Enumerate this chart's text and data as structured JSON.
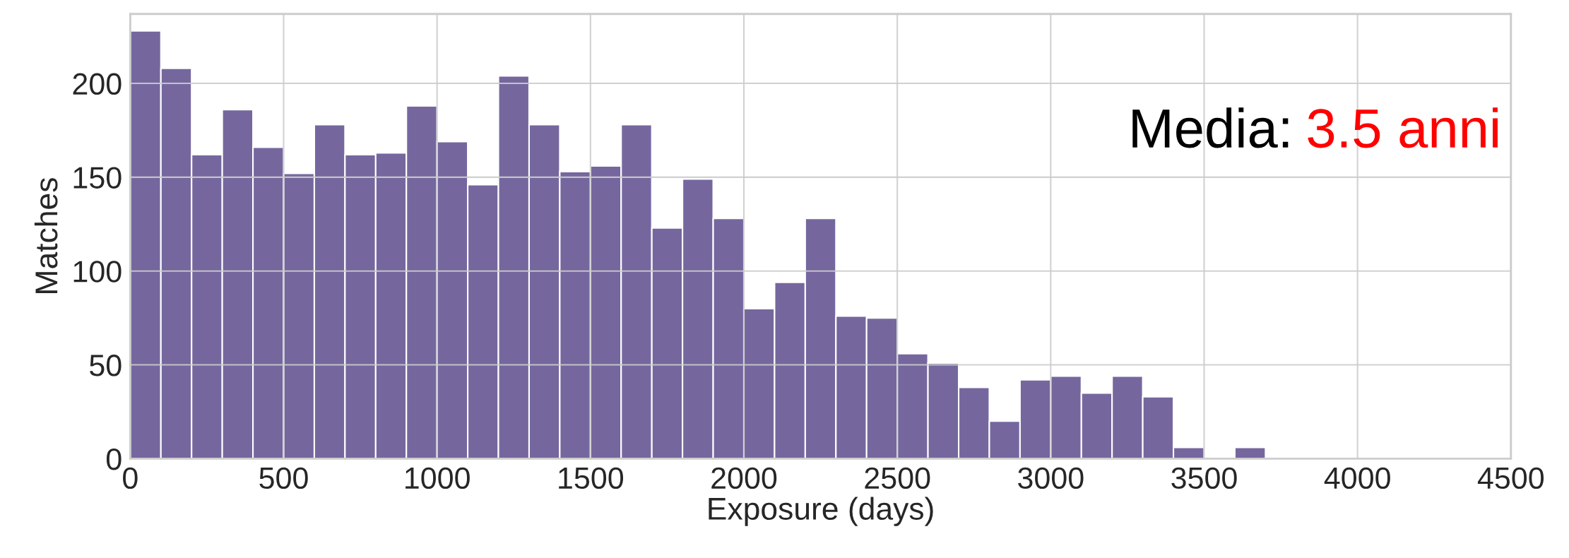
{
  "chart_data": {
    "type": "histogram",
    "xlabel": "Exposure (days)",
    "ylabel": "Matches",
    "bins": [
      0,
      100,
      200,
      300,
      400,
      500,
      600,
      700,
      800,
      900,
      1000,
      1100,
      1200,
      1300,
      1400,
      1500,
      1600,
      1700,
      1800,
      1900,
      2000,
      2100,
      2200,
      2300,
      2400,
      2500,
      2600,
      2700,
      2800,
      2900,
      3000,
      3100,
      3200,
      3300,
      3400,
      3500,
      3600,
      3700
    ],
    "values": [
      228,
      208,
      162,
      186,
      166,
      152,
      178,
      162,
      163,
      188,
      169,
      146,
      204,
      178,
      153,
      156,
      178,
      123,
      149,
      128,
      80,
      94,
      128,
      76,
      75,
      56,
      51,
      38,
      20,
      42,
      44,
      35,
      44,
      33,
      6,
      0,
      6
    ],
    "color": "#75679e",
    "xlim": [
      0,
      4500
    ],
    "xticks": [
      0,
      500,
      1000,
      1500,
      2000,
      2500,
      3000,
      3500,
      4000,
      4500
    ],
    "ylim": [
      0,
      237
    ],
    "yticks": [
      0,
      50,
      100,
      150,
      200
    ],
    "grid": true,
    "annotations": [
      "Media:",
      "3.5 anni"
    ]
  }
}
